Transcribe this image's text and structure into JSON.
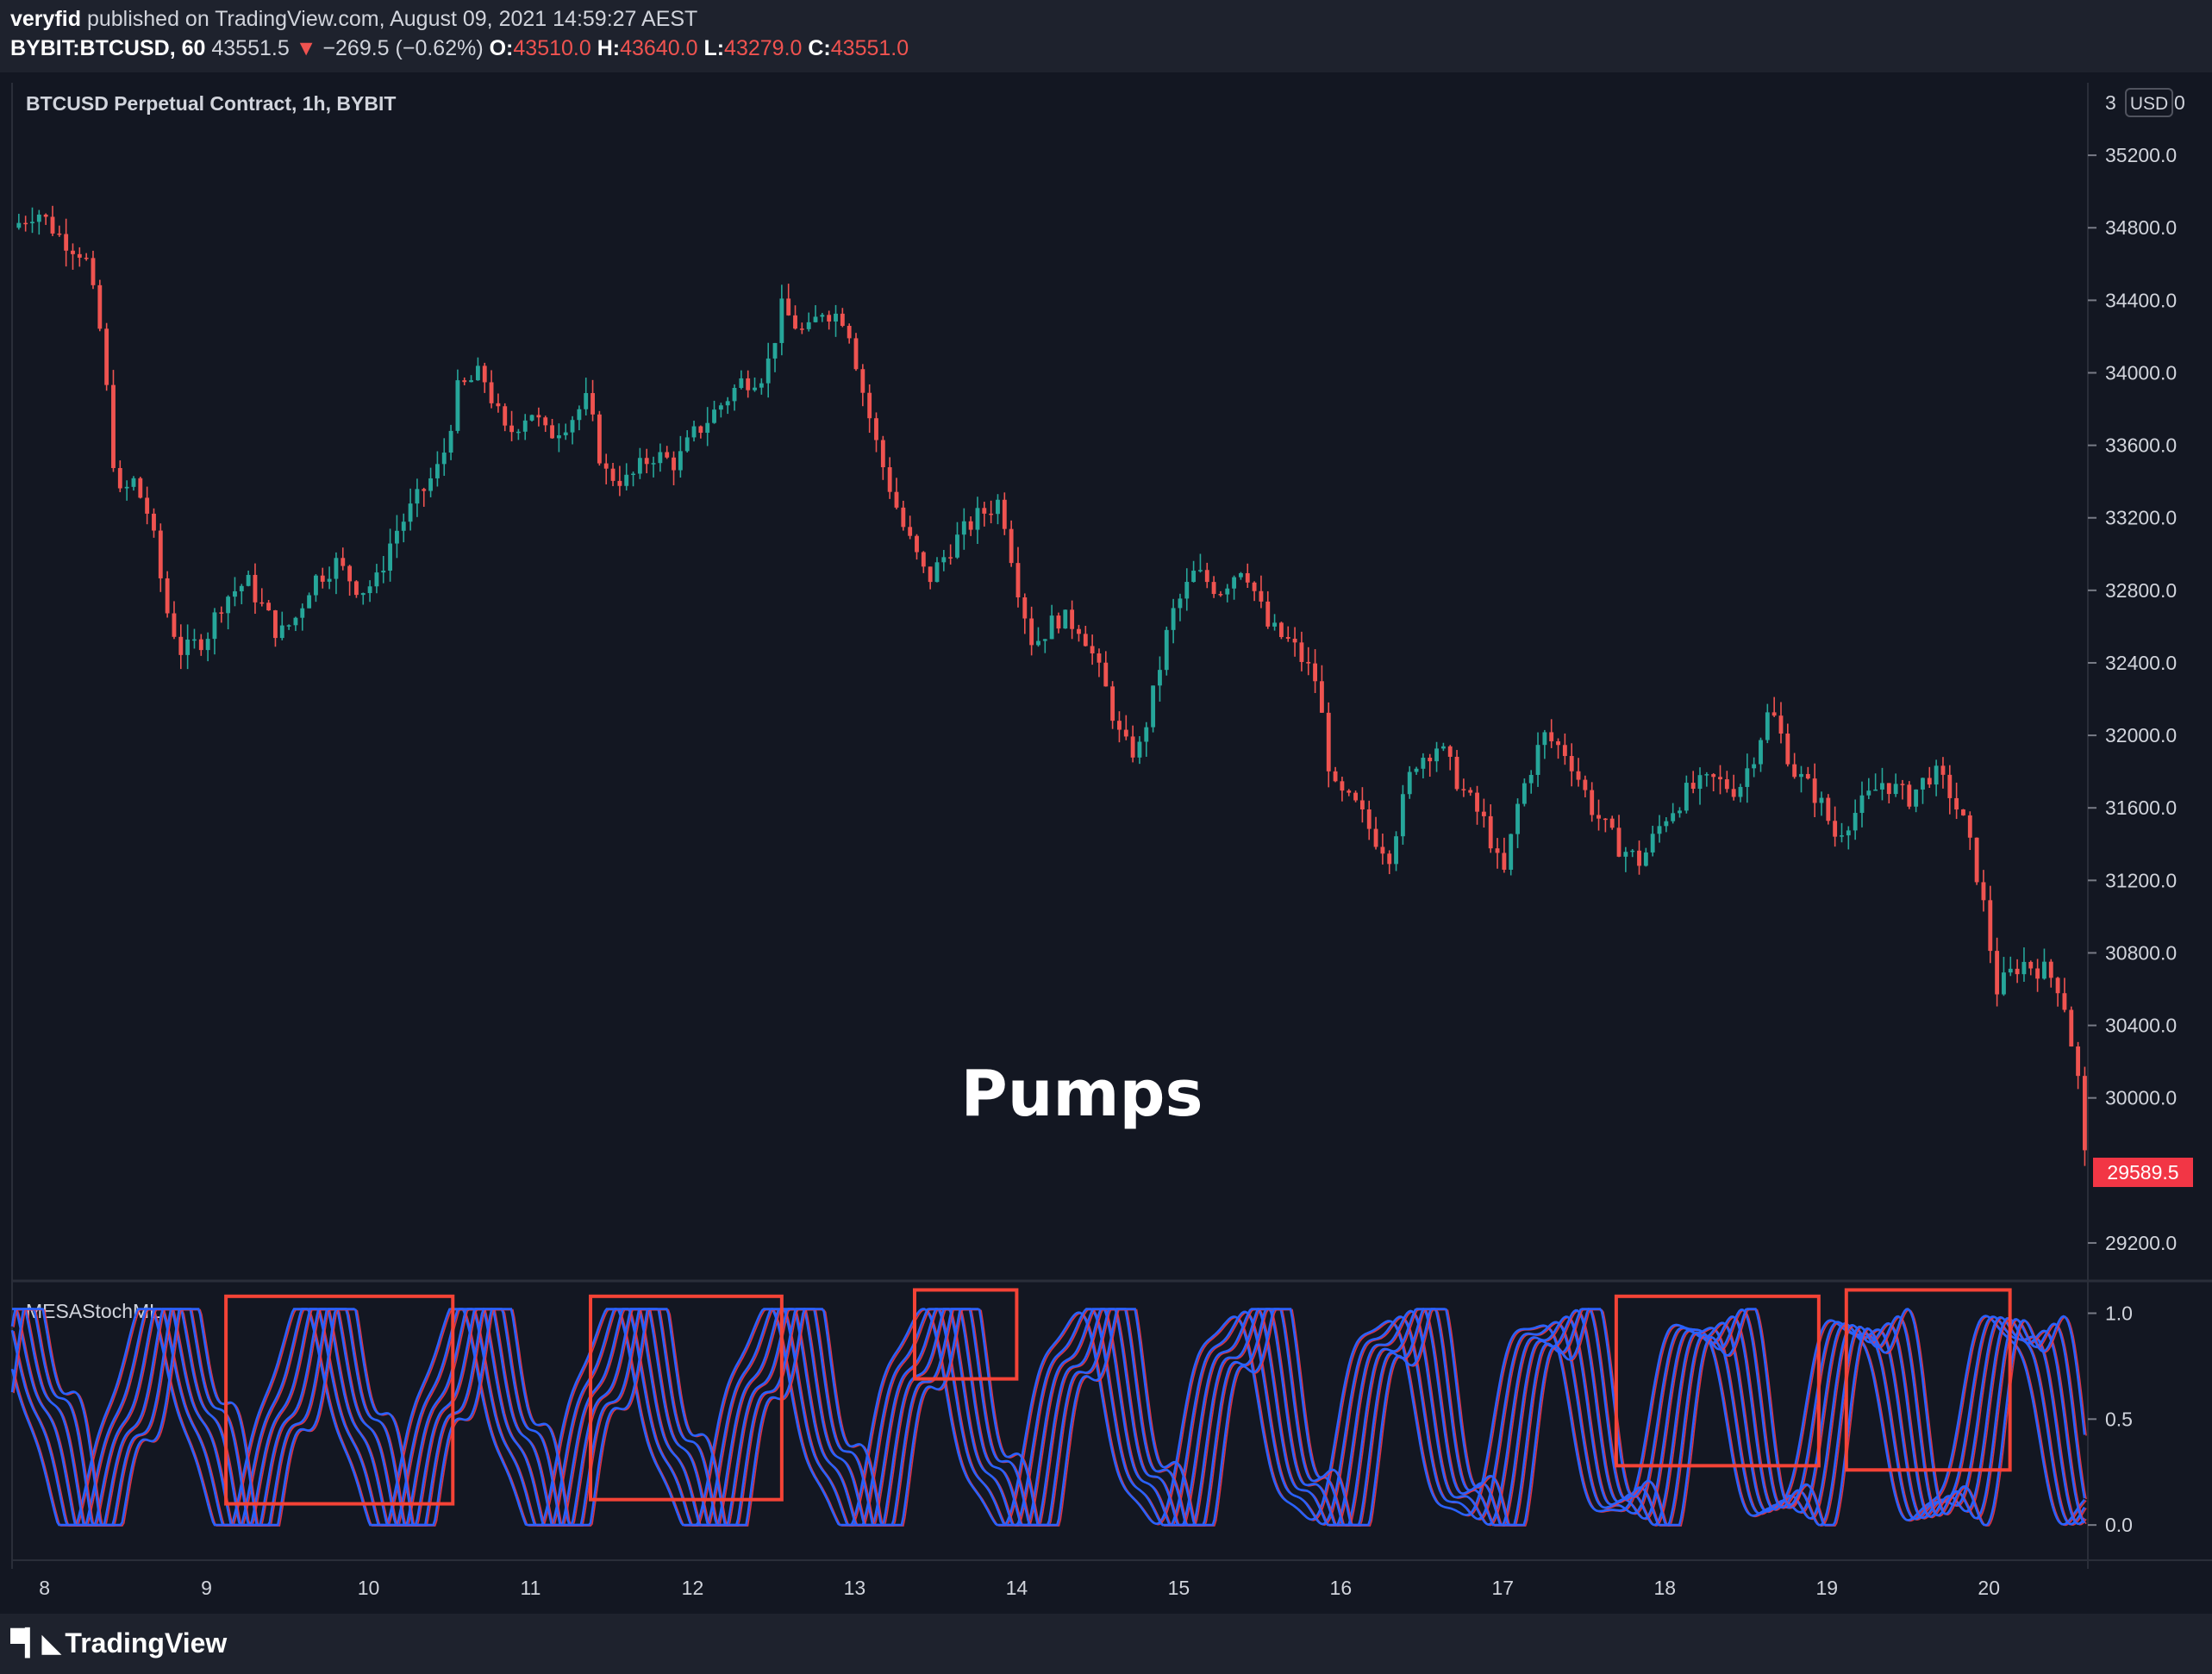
{
  "header": {
    "author": "veryfid",
    "published_text": "published on TradingView.com, August 09, 2021 14:59:27 AEST",
    "symbol": "BYBIT:BTCUSD, 60",
    "last_price": "43551.5",
    "change_arrow": "▼",
    "change": "−269.5 (−0.62%)",
    "o_label": "O:",
    "o_value": "43510.0",
    "h_label": "H:",
    "h_value": "43640.0",
    "l_label": "L:",
    "l_value": "43279.0",
    "c_label": "C:",
    "c_value": "43551.0"
  },
  "chart_data": {
    "type": "candlestick",
    "title": "BTCUSD Perpetual Contract, 1h, BYBIT",
    "currency": "USD",
    "price_axis_partial_label": "3",
    "price_axis_partial_suffix": "0",
    "price_ticks": [
      "35200.0",
      "34800.0",
      "34400.0",
      "34000.0",
      "33600.0",
      "33200.0",
      "32800.0",
      "32400.0",
      "32000.0",
      "31600.0",
      "31200.0",
      "30800.0",
      "30400.0",
      "30000.0",
      "29200.0"
    ],
    "price_tick_values": [
      35200,
      34800,
      34400,
      34000,
      33600,
      33200,
      32800,
      32400,
      32000,
      31600,
      31200,
      30800,
      30400,
      30000,
      29200
    ],
    "price_range": [
      29000,
      35600
    ],
    "last_price_label": "29589.5",
    "last_price_value": 29589.5,
    "annotation": "Pumps",
    "x_ticks": [
      "8",
      "9",
      "10",
      "11",
      "12",
      "13",
      "14",
      "15",
      "16",
      "17",
      "18",
      "19",
      "20"
    ],
    "x_range_days": [
      7.8,
      20.6
    ],
    "price_path": [
      [
        7.8,
        34800
      ],
      [
        7.95,
        34900
      ],
      [
        8.1,
        34750
      ],
      [
        8.25,
        34650
      ],
      [
        8.35,
        34200
      ],
      [
        8.45,
        33300
      ],
      [
        8.55,
        33400
      ],
      [
        8.65,
        33200
      ],
      [
        8.75,
        32700
      ],
      [
        8.85,
        32450
      ],
      [
        9.0,
        32550
      ],
      [
        9.1,
        32750
      ],
      [
        9.25,
        32850
      ],
      [
        9.35,
        32700
      ],
      [
        9.45,
        32550
      ],
      [
        9.55,
        32650
      ],
      [
        9.65,
        32850
      ],
      [
        9.8,
        32950
      ],
      [
        9.95,
        32800
      ],
      [
        10.05,
        32850
      ],
      [
        10.15,
        33100
      ],
      [
        10.3,
        33300
      ],
      [
        10.45,
        33500
      ],
      [
        10.55,
        33900
      ],
      [
        10.7,
        34000
      ],
      [
        10.85,
        33650
      ],
      [
        11.0,
        33800
      ],
      [
        11.1,
        33650
      ],
      [
        11.25,
        33750
      ],
      [
        11.35,
        33850
      ],
      [
        11.45,
        33450
      ],
      [
        11.6,
        33400
      ],
      [
        11.75,
        33550
      ],
      [
        11.9,
        33500
      ],
      [
        12.0,
        33650
      ],
      [
        12.15,
        33800
      ],
      [
        12.3,
        33950
      ],
      [
        12.45,
        34000
      ],
      [
        12.55,
        34350
      ],
      [
        12.7,
        34200
      ],
      [
        12.8,
        34350
      ],
      [
        12.95,
        34300
      ],
      [
        13.05,
        33900
      ],
      [
        13.15,
        33550
      ],
      [
        13.3,
        33150
      ],
      [
        13.45,
        32850
      ],
      [
        13.6,
        33050
      ],
      [
        13.75,
        33200
      ],
      [
        13.9,
        33300
      ],
      [
        14.0,
        32850
      ],
      [
        14.1,
        32500
      ],
      [
        14.25,
        32650
      ],
      [
        14.4,
        32600
      ],
      [
        14.55,
        32250
      ],
      [
        14.65,
        31950
      ],
      [
        14.75,
        31900
      ],
      [
        14.85,
        32250
      ],
      [
        14.95,
        32650
      ],
      [
        15.1,
        32900
      ],
      [
        15.25,
        32800
      ],
      [
        15.4,
        32950
      ],
      [
        15.55,
        32600
      ],
      [
        15.7,
        32500
      ],
      [
        15.85,
        32300
      ],
      [
        15.95,
        31700
      ],
      [
        16.1,
        31600
      ],
      [
        16.2,
        31450
      ],
      [
        16.3,
        31350
      ],
      [
        16.45,
        31850
      ],
      [
        16.6,
        31950
      ],
      [
        16.75,
        31700
      ],
      [
        16.9,
        31500
      ],
      [
        17.0,
        31200
      ],
      [
        17.1,
        31650
      ],
      [
        17.25,
        32000
      ],
      [
        17.4,
        31900
      ],
      [
        17.55,
        31600
      ],
      [
        17.7,
        31400
      ],
      [
        17.85,
        31300
      ],
      [
        18.0,
        31550
      ],
      [
        18.15,
        31700
      ],
      [
        18.3,
        31750
      ],
      [
        18.45,
        31700
      ],
      [
        18.55,
        31900
      ],
      [
        18.65,
        32150
      ],
      [
        18.8,
        31800
      ],
      [
        18.95,
        31650
      ],
      [
        19.05,
        31450
      ],
      [
        19.2,
        31600
      ],
      [
        19.35,
        31750
      ],
      [
        19.5,
        31650
      ],
      [
        19.65,
        31800
      ],
      [
        19.75,
        31700
      ],
      [
        19.85,
        31500
      ],
      [
        19.95,
        31150
      ],
      [
        20.05,
        30600
      ],
      [
        20.2,
        30750
      ],
      [
        20.35,
        30700
      ],
      [
        20.45,
        30600
      ],
      [
        20.55,
        30100
      ],
      [
        20.6,
        29589
      ]
    ],
    "indicator": {
      "name": "MESAStochML",
      "y_ticks": [
        "1.0",
        "0.5",
        "0.0"
      ],
      "y_tick_values": [
        1.0,
        0.5,
        0.0
      ],
      "y_range": [
        -0.15,
        1.12
      ],
      "series_colors": [
        "#2962ff",
        "#f23645"
      ],
      "line_count": 6
    },
    "highlight_boxes": [
      {
        "x0": 9.12,
        "x1": 10.52,
        "y0": 0.1,
        "y1": 1.08
      },
      {
        "x0": 11.37,
        "x1": 12.55,
        "y0": 0.12,
        "y1": 1.08
      },
      {
        "x0": 13.37,
        "x1": 14.0,
        "y0": 0.69,
        "y1": 1.11
      },
      {
        "x0": 17.7,
        "x1": 18.95,
        "y0": 0.28,
        "y1": 1.08
      },
      {
        "x0": 19.12,
        "x1": 20.13,
        "y0": 0.26,
        "y1": 1.11
      }
    ]
  },
  "colors": {
    "background": "#131722",
    "panel_bar": "#1e222d",
    "up": "#26a69a",
    "down": "#ef5350",
    "text": "#d1d4dc",
    "grid": "#2a2e39",
    "box": "#f44336"
  },
  "footer": {
    "brand": "TradingView"
  }
}
